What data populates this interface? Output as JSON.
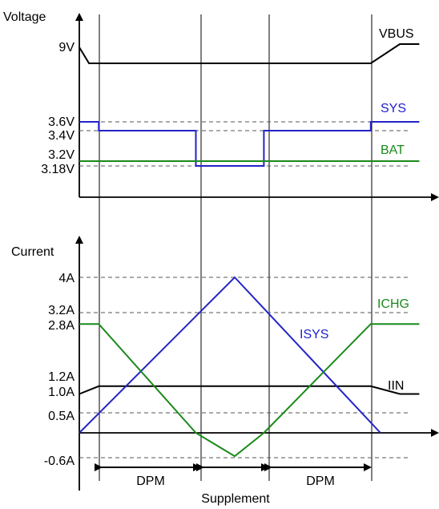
{
  "colors": {
    "black": "#000000",
    "blue": "#2323c8",
    "green": "#1a8a1a",
    "dash": "#555555"
  },
  "chart_data": [
    {
      "type": "line",
      "ylabel": "Voltage",
      "ticks": [
        {
          "label": "9V",
          "value": 9.0
        },
        {
          "label": "3.6V",
          "value": 3.6
        },
        {
          "label": "3.4V",
          "value": 3.4
        },
        {
          "label": "3.2V",
          "value": 3.2
        },
        {
          "label": "3.18V",
          "value": 3.18
        }
      ],
      "series": [
        {
          "name": "VBUS",
          "color": "#000000",
          "x": [
            0,
            0.5,
            15,
            16.5,
            17.5
          ],
          "y": [
            9,
            8.4,
            8.4,
            9.1,
            9.1
          ]
        },
        {
          "name": "SYS",
          "color": "#2323c8",
          "x": [
            0,
            1,
            1,
            6,
            6,
            9.5,
            9.5,
            15,
            15,
            17.5
          ],
          "y": [
            3.6,
            3.6,
            3.4,
            3.4,
            3.18,
            3.18,
            3.4,
            3.4,
            3.6,
            3.6
          ]
        },
        {
          "name": "BAT",
          "color": "#1a8a1a",
          "x": [
            0,
            17.5
          ],
          "y": [
            3.2,
            3.2
          ]
        }
      ]
    },
    {
      "type": "line",
      "ylabel": "Current",
      "ticks": [
        {
          "label": "4A",
          "value": 4.0
        },
        {
          "label": "3.2A",
          "value": 3.2
        },
        {
          "label": "2.8A",
          "value": 2.8
        },
        {
          "label": "1.2A",
          "value": 1.2
        },
        {
          "label": "1.0A",
          "value": 1.0
        },
        {
          "label": "0.5A",
          "value": 0.5
        },
        {
          "label": "-0.6A",
          "value": -0.6
        }
      ],
      "series": [
        {
          "name": "IIN",
          "color": "#000000",
          "x": [
            0,
            1,
            15,
            16.5,
            17.5
          ],
          "y": [
            1.0,
            1.2,
            1.2,
            1.0,
            1.0
          ]
        },
        {
          "name": "ISYS",
          "color": "#2323c8",
          "x": [
            0,
            8,
            15.5
          ],
          "y": [
            0,
            4,
            0
          ]
        },
        {
          "name": "ICHG",
          "color": "#1a8a1a",
          "x": [
            0,
            1,
            6,
            8,
            9.5,
            15,
            17.5
          ],
          "y": [
            2.8,
            2.8,
            0,
            -0.6,
            0,
            2.8,
            2.8
          ]
        }
      ],
      "annotations": [
        "DPM",
        "Supplement",
        "DPM"
      ]
    }
  ]
}
